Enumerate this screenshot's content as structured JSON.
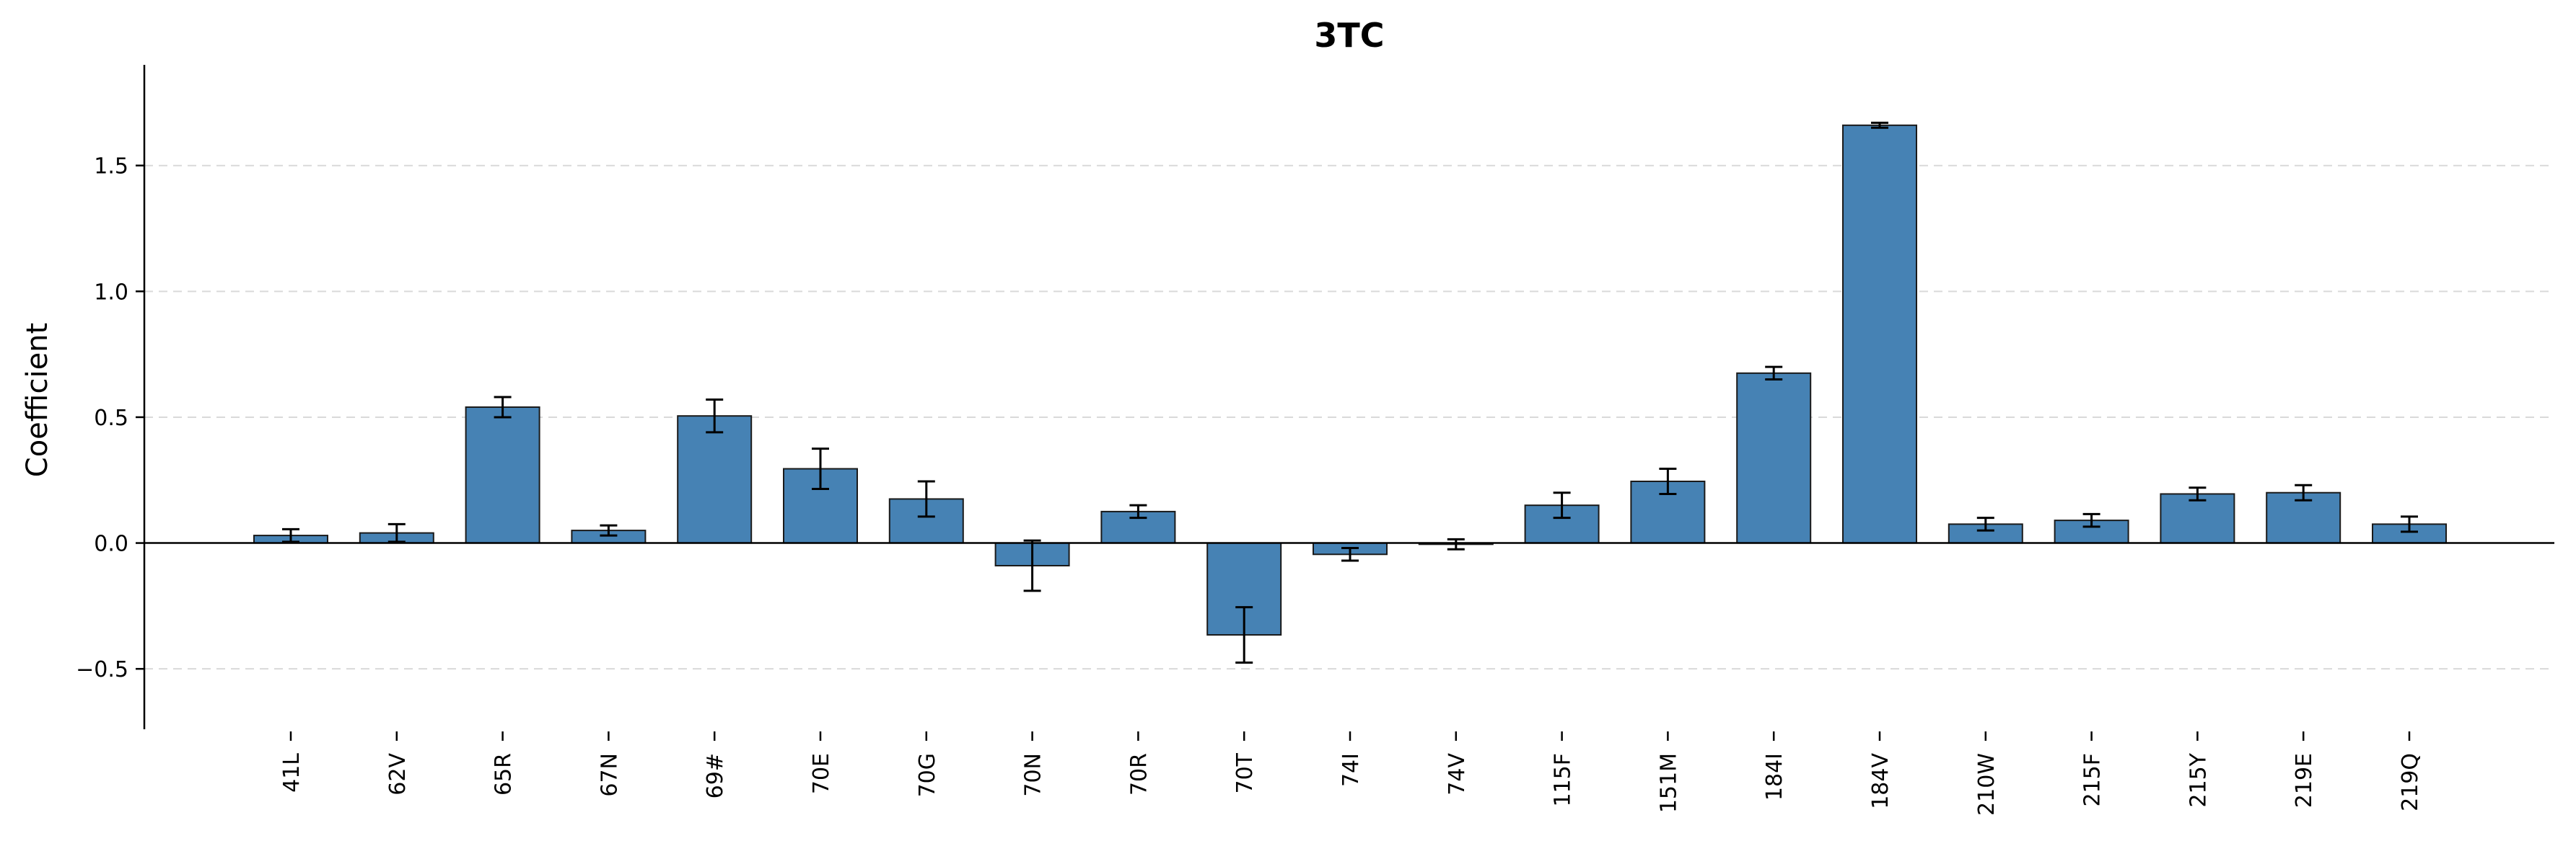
{
  "chart_data": {
    "type": "bar",
    "title": "3TC",
    "xlabel": "",
    "ylabel": "Coefficient",
    "ylim": [
      -0.74,
      1.9
    ],
    "yticks": [
      -0.5,
      0.0,
      0.5,
      1.0,
      1.5
    ],
    "ytick_labels": [
      "−0.5",
      "0.0",
      "0.5",
      "1.0",
      "1.5"
    ],
    "grid": "horizontal dashed",
    "bar_color": "#4682b4",
    "categories": [
      "41L",
      "62V",
      "65R",
      "67N",
      "69#",
      "70E",
      "70G",
      "70N",
      "70R",
      "70T",
      "74I",
      "74V",
      "115F",
      "151M",
      "184I",
      "184V",
      "210W",
      "215F",
      "215Y",
      "219E",
      "219Q"
    ],
    "values": [
      0.03,
      0.04,
      0.54,
      0.05,
      0.505,
      0.295,
      0.175,
      -0.09,
      0.125,
      -0.365,
      -0.045,
      -0.005,
      0.15,
      0.245,
      0.675,
      1.66,
      0.075,
      0.09,
      0.195,
      0.2,
      0.075
    ],
    "errors": [
      0.025,
      0.035,
      0.04,
      0.02,
      0.065,
      0.08,
      0.07,
      0.1,
      0.025,
      0.11,
      0.025,
      0.02,
      0.05,
      0.05,
      0.025,
      0.01,
      0.025,
      0.025,
      0.025,
      0.03,
      0.03
    ]
  }
}
